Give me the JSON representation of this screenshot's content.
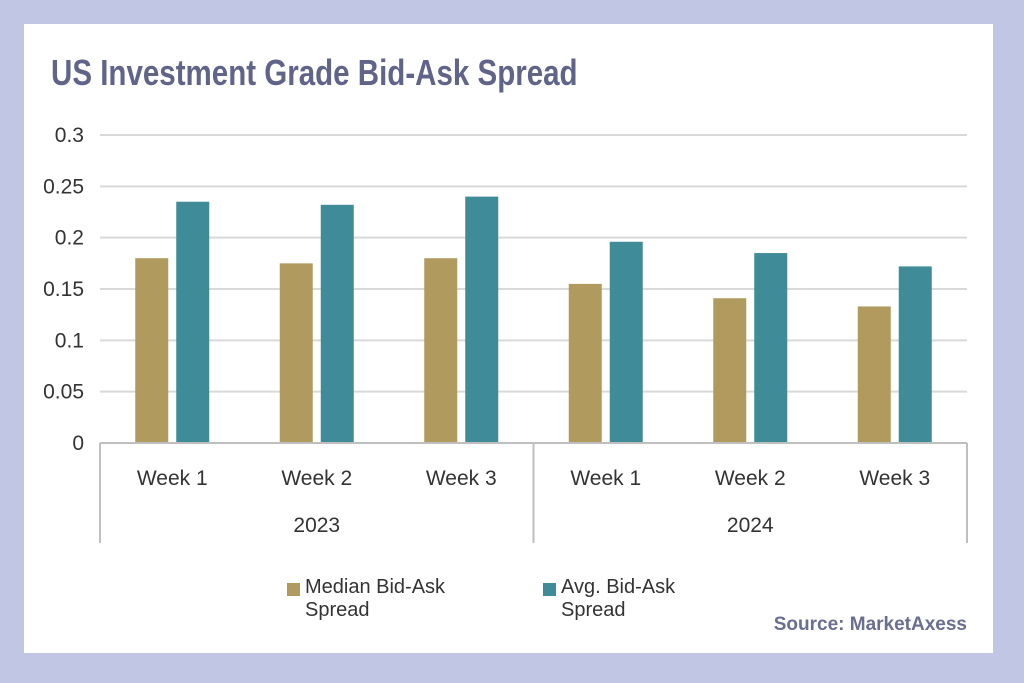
{
  "chart_data": {
    "type": "bar",
    "title": "US Investment Grade Bid-Ask Spread",
    "categories": [
      "Week 1",
      "Week 2",
      "Week 3",
      "Week 1",
      "Week 2",
      "Week 3"
    ],
    "groups": [
      {
        "label": "2023",
        "count": 3
      },
      {
        "label": "2024",
        "count": 3
      }
    ],
    "series": [
      {
        "name": "Median Bid-Ask Spread",
        "color": "#b09a5e",
        "values": [
          0.18,
          0.175,
          0.18,
          0.155,
          0.141,
          0.133
        ]
      },
      {
        "name": "Avg. Bid-Ask Spread",
        "color": "#3f8b97",
        "values": [
          0.235,
          0.232,
          0.24,
          0.196,
          0.185,
          0.172
        ]
      }
    ],
    "ylim": [
      0,
      0.3
    ],
    "yticks": [
      "0",
      "0.05",
      "0.1",
      "0.15",
      "0.2",
      "0.25",
      "0.3"
    ],
    "grid": true,
    "legend_position": "bottom"
  },
  "source": "Source: MarketAxess"
}
